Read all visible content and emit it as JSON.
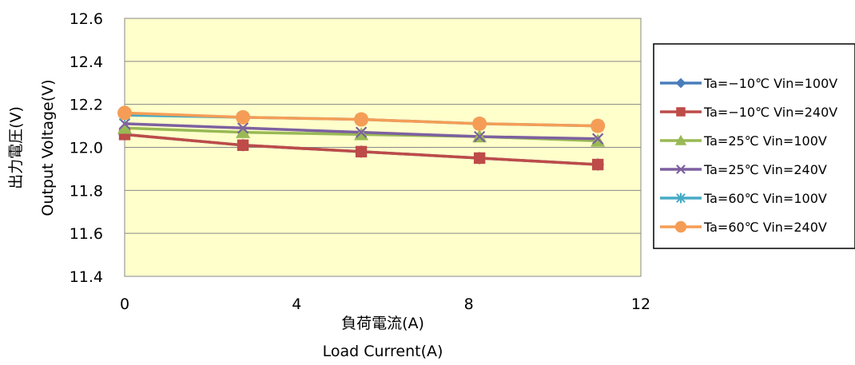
{
  "chart_data": {
    "type": "line",
    "title": "",
    "xlabel_jp": "負荷電流(A)",
    "xlabel_en": "Load Current(A)",
    "ylabel_jp": "出力電圧(V)",
    "ylabel_en": "Output  Voltage(V)",
    "xlim": [
      0,
      12
    ],
    "ylim": [
      11.4,
      12.6
    ],
    "x_ticks": [
      "0",
      "4",
      "8",
      "12"
    ],
    "y_ticks": [
      "11.4",
      "11.6",
      "11.8",
      "12.0",
      "12.2",
      "12.4",
      "12.6"
    ],
    "grid": "horizontal",
    "legend_position": "right",
    "plot_background": "#FFFFCC",
    "x": [
      0,
      2.75,
      5.5,
      8.25,
      11
    ],
    "series": [
      {
        "name": "Ta=−10℃ Vin=100V",
        "color": "#4A7EBB",
        "marker": "diamond",
        "values": [
          12.06,
          12.01,
          11.98,
          11.95,
          11.92
        ]
      },
      {
        "name": "Ta=−10℃ Vin=240V",
        "color": "#BE4B48",
        "marker": "square",
        "values": [
          12.06,
          12.01,
          11.98,
          11.95,
          11.92
        ]
      },
      {
        "name": "Ta=25℃ Vin=100V",
        "color": "#98B954",
        "marker": "triangle",
        "values": [
          12.09,
          12.07,
          12.06,
          12.05,
          12.03
        ]
      },
      {
        "name": "Ta=25℃ Vin=240V",
        "color": "#7D60A0",
        "marker": "x",
        "values": [
          12.11,
          12.09,
          12.07,
          12.05,
          12.04
        ]
      },
      {
        "name": "Ta=60℃ Vin=100V",
        "color": "#46AAC5",
        "marker": "star",
        "values": [
          12.15,
          12.14,
          12.13,
          12.11,
          12.1
        ]
      },
      {
        "name": "Ta=60℃ Vin=240V",
        "color": "#F59D56",
        "marker": "circle",
        "values": [
          12.16,
          12.14,
          12.13,
          12.11,
          12.1
        ]
      }
    ]
  }
}
